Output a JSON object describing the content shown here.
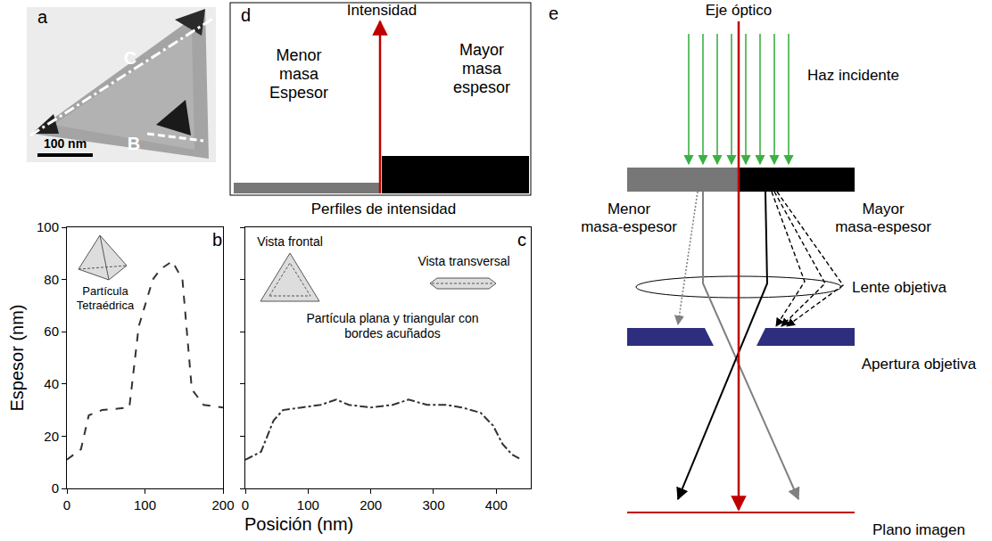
{
  "panels": {
    "a": {
      "letter": "a",
      "labels": [
        "C",
        "B"
      ],
      "scale_bar": "100 nm"
    },
    "d": {
      "letter": "d",
      "axis_label": "Intensidad",
      "left": [
        "Menor",
        "masa",
        "Espesor"
      ],
      "right": [
        "Mayor",
        "masa",
        "espesor"
      ],
      "caption": "Perfiles de intensidad"
    },
    "e": {
      "letter": "e",
      "optical_axis": "Eje óptico",
      "beam": "Haz incidente",
      "left": [
        "Menor",
        "masa-espesor"
      ],
      "right": [
        "Mayor",
        "masa-espesor"
      ],
      "lens": "Lente objetiva",
      "aperture": "Apertura objetiva",
      "image_plane": "Plano imagen"
    }
  },
  "shared_x_label": "Posición (nm)",
  "chart_data": [
    {
      "letter": "b",
      "type": "line",
      "line_style": "dashed",
      "color": "#333333",
      "x": [
        0,
        18,
        28,
        45,
        80,
        92,
        100,
        110,
        120,
        135,
        148,
        160,
        175,
        200
      ],
      "values": [
        11,
        15,
        28,
        30,
        31,
        62,
        70,
        80,
        84,
        87,
        80,
        38,
        32,
        31
      ],
      "xlim": [
        0,
        200
      ],
      "xticks": [
        0,
        100,
        200
      ],
      "ylim": [
        0,
        100
      ],
      "yticks": [
        0,
        20,
        40,
        60,
        80,
        100
      ],
      "y_label": "Espesor (nm)",
      "grid": false,
      "inset": {
        "label": [
          "Partícula",
          "Tetraédrica"
        ]
      }
    },
    {
      "letter": "c",
      "type": "line",
      "line_style": "dashdot",
      "color": "#333333",
      "x": [
        0,
        25,
        45,
        60,
        90,
        120,
        145,
        165,
        200,
        235,
        260,
        290,
        320,
        345,
        375,
        395,
        410,
        425,
        440
      ],
      "values": [
        11,
        14,
        26,
        30,
        31,
        32,
        34,
        32,
        31,
        32,
        34,
        32,
        32,
        31,
        29,
        24,
        17,
        13,
        11
      ],
      "xlim": [
        0,
        455
      ],
      "xticks": [
        0,
        100,
        200,
        300,
        400
      ],
      "ylim": [
        0,
        100
      ],
      "yticks": [
        0,
        20,
        40,
        60,
        80,
        100
      ],
      "grid": false,
      "tick_labels": "x",
      "inset": {
        "front_view": "Vista frontal",
        "side_view": "Vista transversal",
        "caption": [
          "Partícula plana y triangular con",
          "bordes acuñados"
        ]
      }
    }
  ]
}
